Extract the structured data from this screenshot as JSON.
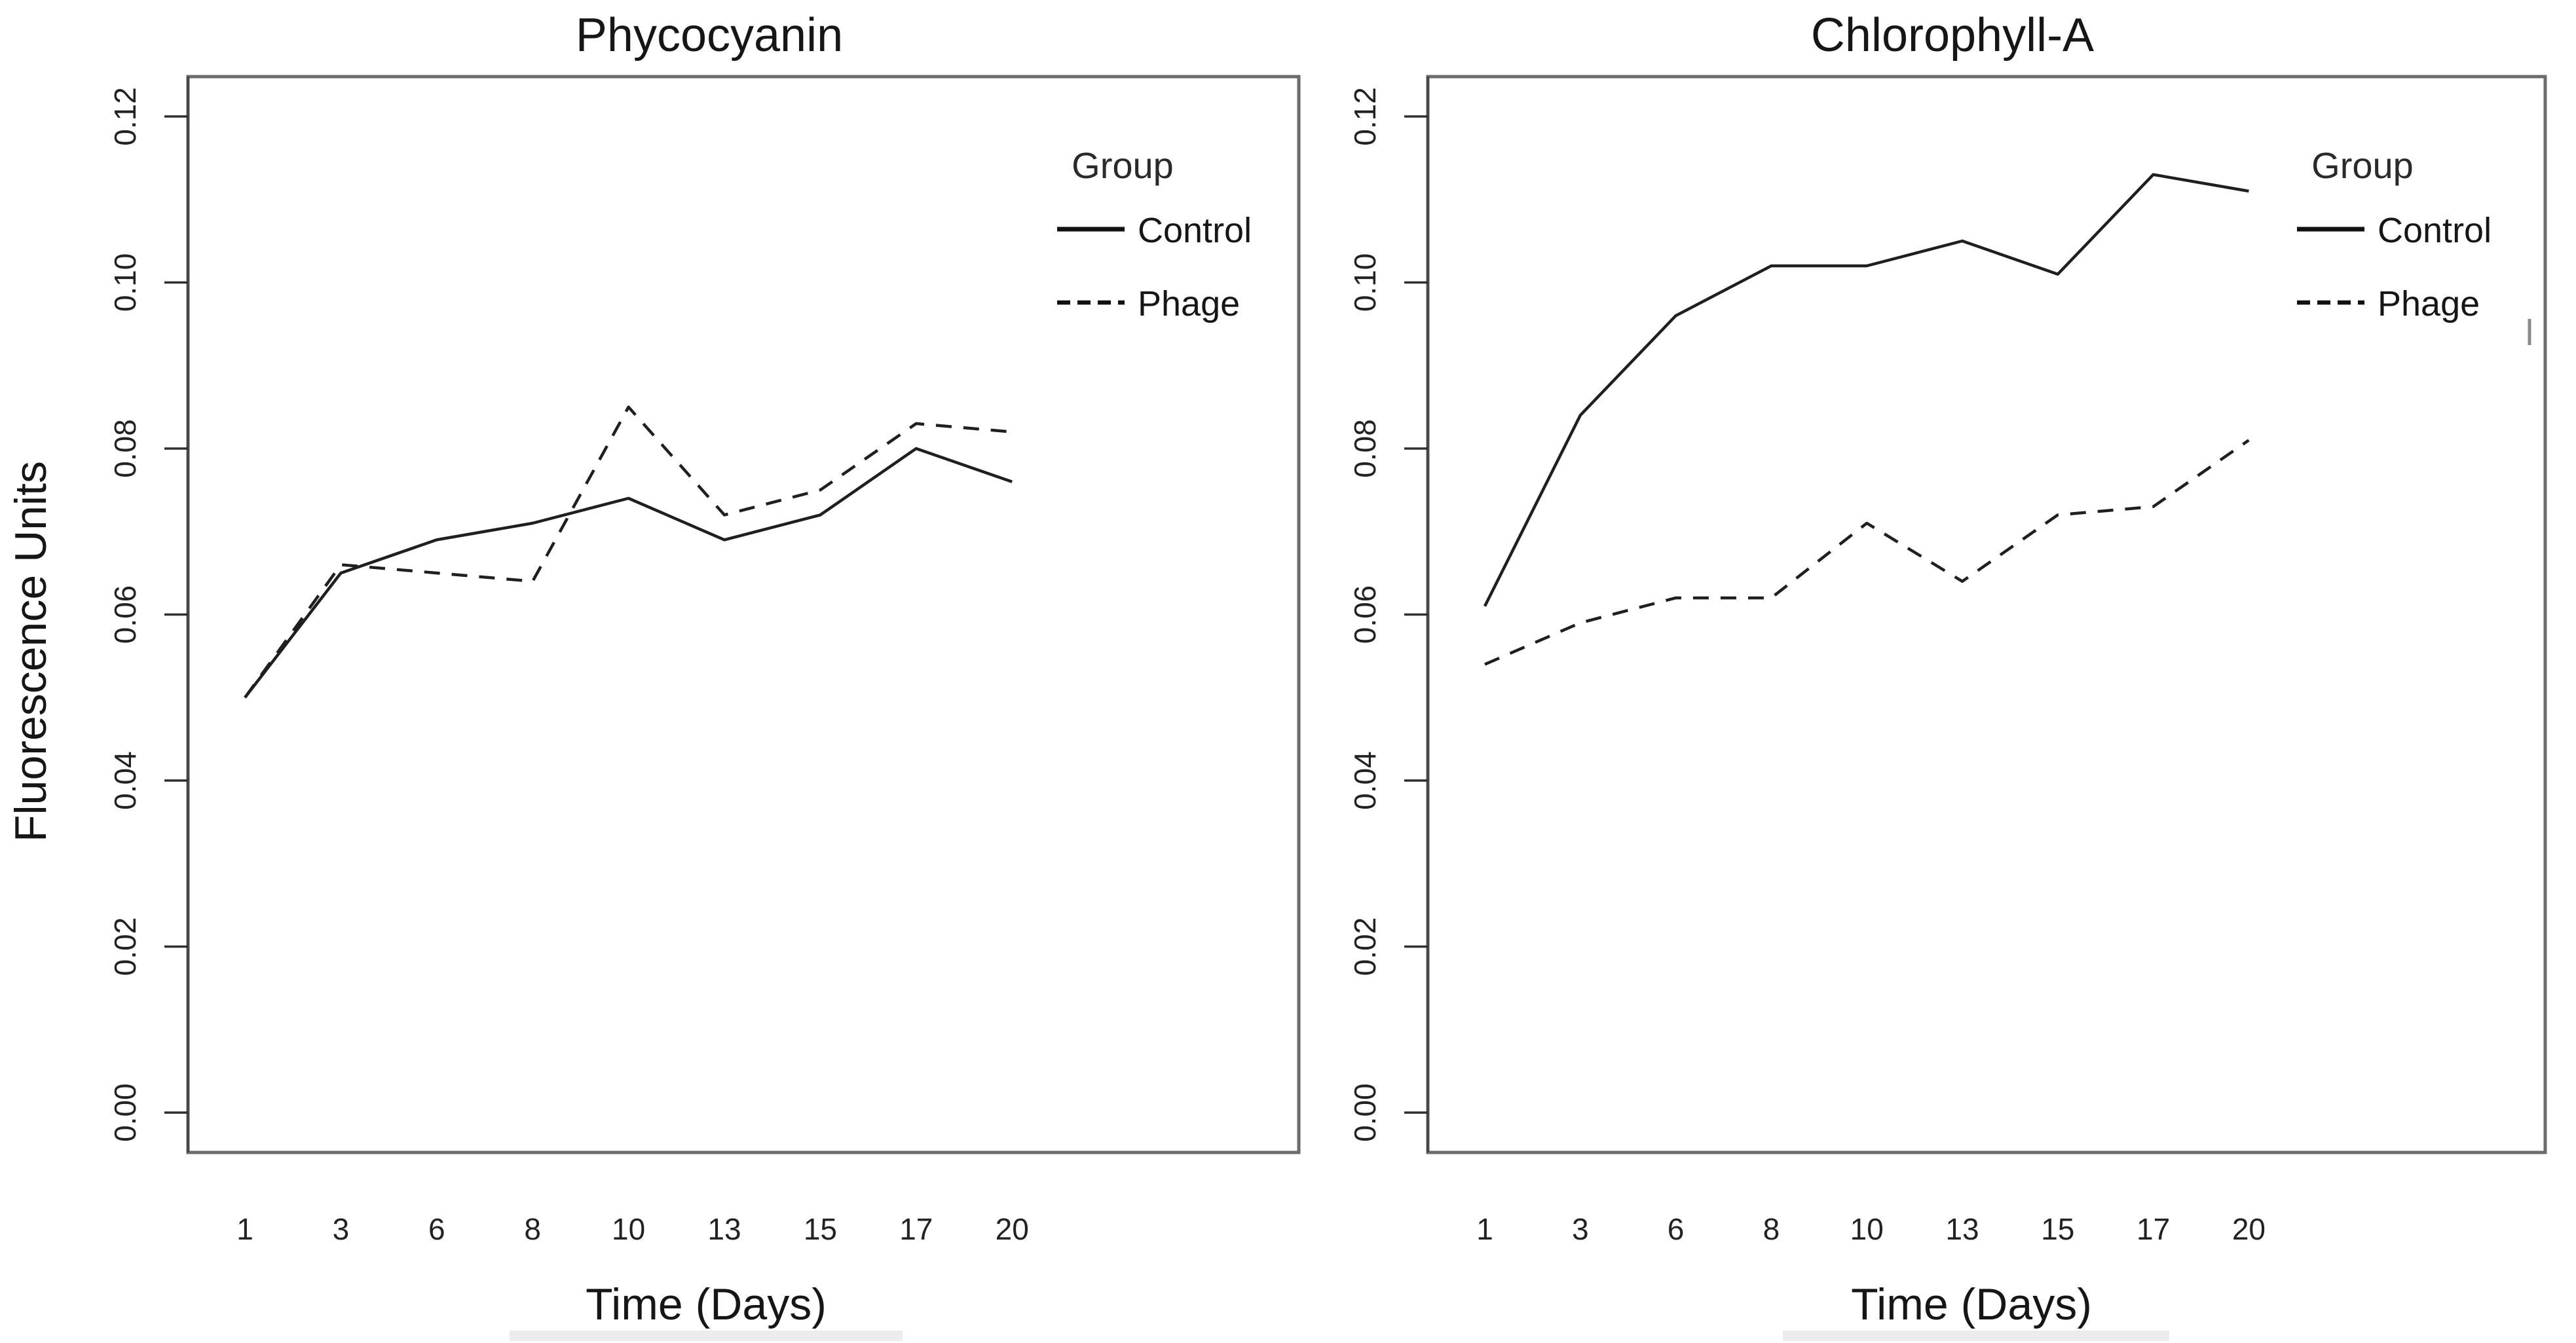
{
  "figure": {
    "ylabel": "Fluorescence Units",
    "xlabel": "Time (Days)",
    "legend_title": "Group",
    "colors": {
      "background": "#ffffff",
      "line": "#1f1f1f",
      "panel_border": "#6b6b6b",
      "text": "#161616",
      "artifact": "#8a8a8a",
      "bottom_band": "#ececec"
    }
  },
  "chart_data": [
    {
      "type": "line",
      "title": "Phycocyanin",
      "xlabel": "Time (Days)",
      "ylabel": "Fluorescence Units",
      "legend_title": "Group",
      "legend_position": "top-right",
      "grid": false,
      "categories": [
        1,
        3,
        6,
        8,
        10,
        13,
        15,
        17,
        20
      ],
      "x_tick_labels": [
        "1",
        "3",
        "6",
        "8",
        "10",
        "13",
        "15",
        "17",
        "20"
      ],
      "y_ticks": [
        0.0,
        0.02,
        0.04,
        0.06,
        0.08,
        0.1,
        0.12
      ],
      "ylim": [
        0.0,
        0.12
      ],
      "series": [
        {
          "name": "Control",
          "style": "solid",
          "values": [
            0.05,
            0.065,
            0.069,
            0.071,
            0.074,
            0.069,
            0.072,
            0.08,
            0.076
          ]
        },
        {
          "name": "Phage",
          "style": "dashed",
          "values": [
            0.05,
            0.066,
            0.065,
            0.064,
            0.085,
            0.072,
            0.075,
            0.083,
            0.082
          ]
        }
      ]
    },
    {
      "type": "line",
      "title": "Chlorophyll-A",
      "xlabel": "Time (Days)",
      "ylabel": "Fluorescence Units",
      "legend_title": "Group",
      "legend_position": "top-right",
      "grid": false,
      "categories": [
        1,
        3,
        6,
        8,
        10,
        13,
        15,
        17,
        20
      ],
      "x_tick_labels": [
        "1",
        "3",
        "6",
        "8",
        "10",
        "13",
        "15",
        "17",
        "20"
      ],
      "y_ticks": [
        0.0,
        0.02,
        0.04,
        0.06,
        0.08,
        0.1,
        0.12
      ],
      "ylim": [
        0.0,
        0.12
      ],
      "series": [
        {
          "name": "Control",
          "style": "solid",
          "values": [
            0.061,
            0.084,
            0.096,
            0.102,
            0.102,
            0.105,
            0.101,
            0.113,
            0.111
          ]
        },
        {
          "name": "Phage",
          "style": "dashed",
          "values": [
            0.054,
            0.059,
            0.062,
            0.062,
            0.071,
            0.064,
            0.072,
            0.073,
            0.081
          ]
        }
      ]
    }
  ]
}
